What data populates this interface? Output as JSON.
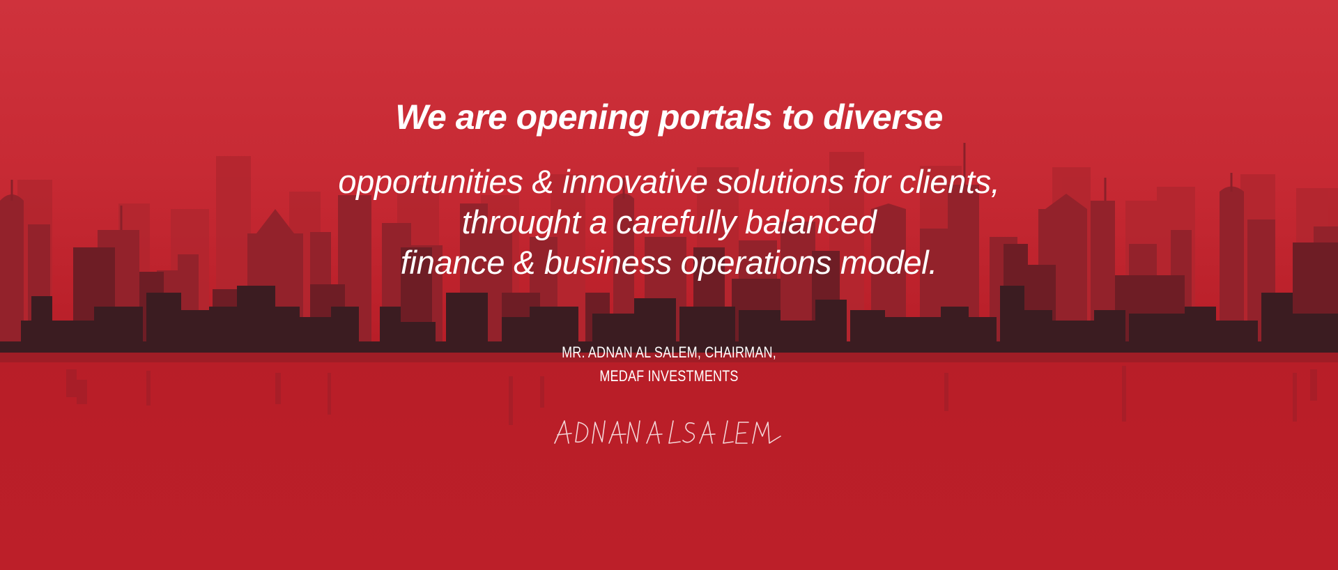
{
  "colors": {
    "background": "#c72a34",
    "text": "#ffffff",
    "skyline_dark": "#3a1b20",
    "skyline_mid": "#7a2129",
    "skyline_light": "#a8262f"
  },
  "quote": {
    "lead": "We are opening portals to diverse",
    "lines": [
      "opportunities & innovative solutions for clients,",
      "throught a carefully balanced",
      "finance & business operations model."
    ]
  },
  "attribution": {
    "lines": [
      "MR. ADNAN AL SALEM, CHAIRMAN,",
      "MEDAF INVESTMENTS"
    ]
  },
  "signature": {
    "text": "ADNAN ALSALEM"
  }
}
